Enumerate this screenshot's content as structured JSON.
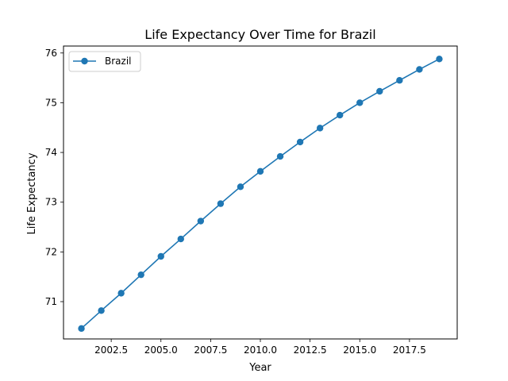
{
  "chart_data": {
    "type": "line",
    "title": "Life Expectancy Over Time for Brazil",
    "xlabel": "Year",
    "ylabel": "Life Expectancy",
    "xlim": [
      2000.1,
      2019.9
    ],
    "ylim": [
      70.25,
      76.14
    ],
    "xticks": [
      {
        "value": 2002.5,
        "label": "2002.5"
      },
      {
        "value": 2005.0,
        "label": "2005.0"
      },
      {
        "value": 2007.5,
        "label": "2007.5"
      },
      {
        "value": 2010.0,
        "label": "2010.0"
      },
      {
        "value": 2012.5,
        "label": "2012.5"
      },
      {
        "value": 2015.0,
        "label": "2015.0"
      },
      {
        "value": 2017.5,
        "label": "2017.5"
      }
    ],
    "yticks": [
      {
        "value": 71,
        "label": "71"
      },
      {
        "value": 72,
        "label": "72"
      },
      {
        "value": 73,
        "label": "73"
      },
      {
        "value": 74,
        "label": "74"
      },
      {
        "value": 75,
        "label": "75"
      },
      {
        "value": 76,
        "label": "76"
      }
    ],
    "grid": false,
    "legend_position": "upper-left",
    "series": [
      {
        "name": "Brazil",
        "color": "#1f77b4",
        "marker": "circle",
        "x": [
          2001,
          2002,
          2003,
          2004,
          2005,
          2006,
          2007,
          2008,
          2009,
          2010,
          2011,
          2012,
          2013,
          2014,
          2015,
          2016,
          2017,
          2018,
          2019
        ],
        "y": [
          70.46,
          70.82,
          71.17,
          71.54,
          71.91,
          72.26,
          72.62,
          72.97,
          73.31,
          73.62,
          73.92,
          74.21,
          74.49,
          74.75,
          75.0,
          75.23,
          75.45,
          75.67,
          75.88
        ]
      }
    ]
  }
}
